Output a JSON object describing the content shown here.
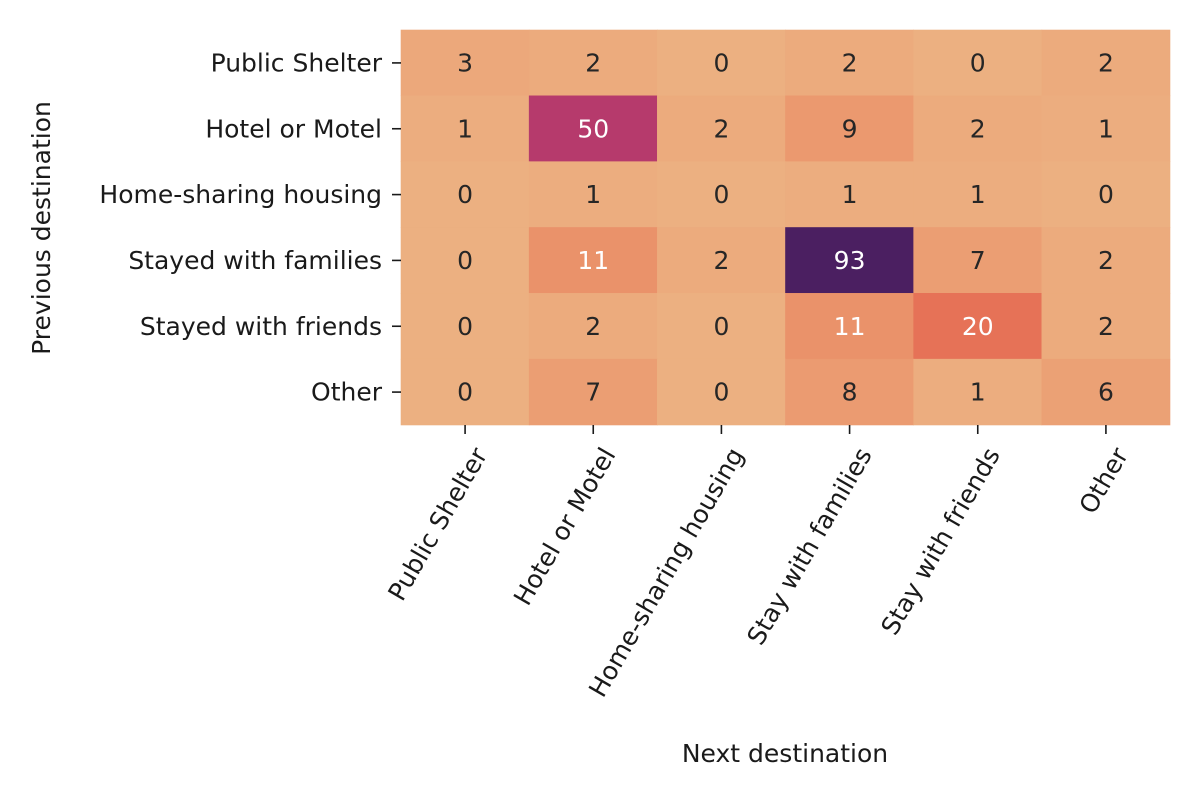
{
  "chart_data": {
    "type": "heatmap",
    "title": "",
    "xlabel": "Next destination",
    "ylabel": "Previous destination",
    "x_categories": [
      "Public Shelter",
      "Hotel or Motel",
      "Home-sharing housing",
      "Stay with families",
      "Stay with friends",
      "Other"
    ],
    "y_categories": [
      "Public Shelter",
      "Hotel or Motel",
      "Home-sharing housing",
      "Stayed with families",
      "Stayed with friends",
      "Other"
    ],
    "values": [
      [
        3,
        2,
        0,
        2,
        0,
        2
      ],
      [
        1,
        50,
        2,
        9,
        2,
        1
      ],
      [
        0,
        1,
        0,
        1,
        1,
        0
      ],
      [
        0,
        11,
        2,
        93,
        7,
        2
      ],
      [
        0,
        2,
        0,
        11,
        20,
        2
      ],
      [
        0,
        7,
        0,
        8,
        1,
        6
      ]
    ],
    "colormap": "flare",
    "colorbar": false,
    "value_range": [
      0,
      93
    ]
  }
}
